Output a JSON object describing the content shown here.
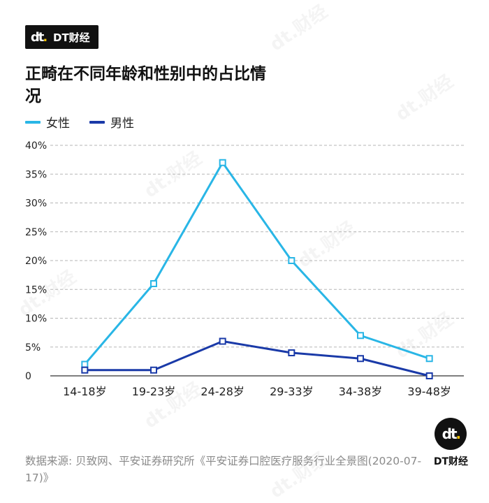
{
  "brand": {
    "logo_text": "dt",
    "name": "DT财经"
  },
  "title": "正畸在不同年龄和性别中的占比情况",
  "legend": [
    {
      "name": "女性",
      "color": "#29b6e6"
    },
    {
      "name": "男性",
      "color": "#1a3aa8"
    }
  ],
  "chart_data": {
    "type": "line",
    "categories": [
      "14-18岁",
      "19-23岁",
      "24-28岁",
      "29-33岁",
      "34-38岁",
      "39-48岁"
    ],
    "series": [
      {
        "name": "女性",
        "color": "#29b6e6",
        "values": [
          2,
          16,
          37,
          20,
          7,
          3
        ]
      },
      {
        "name": "男性",
        "color": "#1a3aa8",
        "values": [
          1,
          1,
          6,
          4,
          3,
          0
        ]
      }
    ],
    "ylim": [
      0,
      40
    ],
    "yticks": [
      0,
      5,
      10,
      15,
      20,
      25,
      30,
      35,
      40
    ],
    "ytick_labels": [
      "0",
      "5%",
      "10%",
      "15%",
      "20%",
      "25%",
      "30%",
      "35%",
      "40%"
    ],
    "grid": true
  },
  "source": "数据来源: 贝致网、平安证券研究所《平安证券口腔医疗服务行业全景图(2020-07-17)》",
  "footer_logo": {
    "logo_text": "dt",
    "name": "DT财经"
  }
}
